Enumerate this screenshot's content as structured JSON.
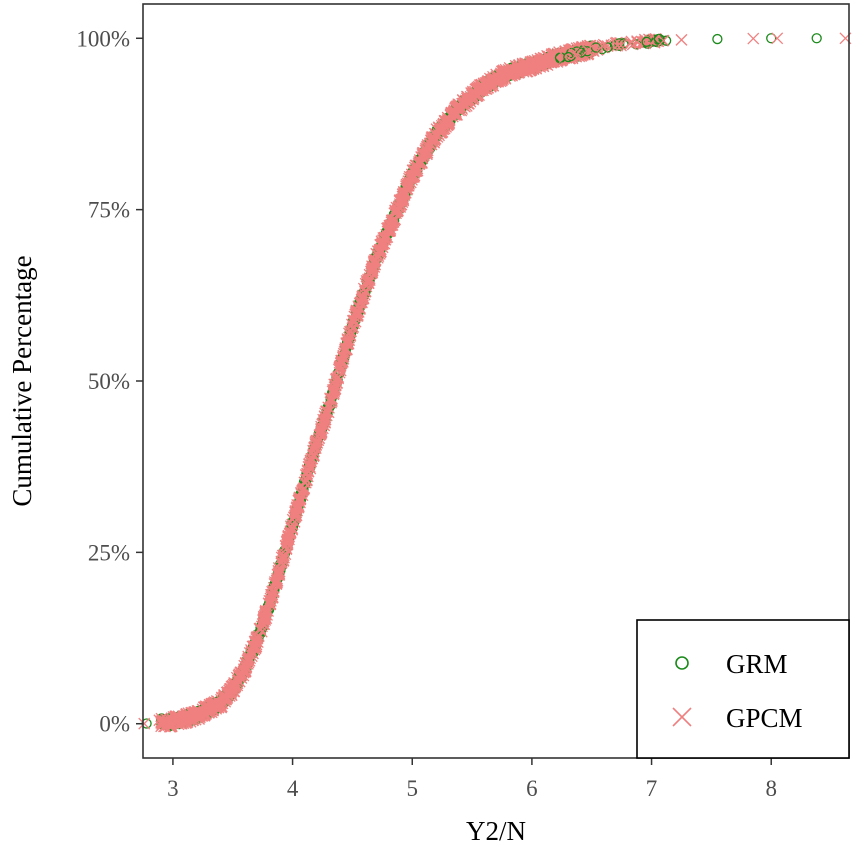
{
  "chart_data": {
    "type": "scatter",
    "title": "",
    "xlabel": "Y2/N",
    "ylabel": "Cumulative Percentage",
    "xlim": [
      2.75,
      8.65
    ],
    "ylim": [
      -0.05,
      1.05
    ],
    "xticks": [
      3,
      4,
      5,
      6,
      7,
      8
    ],
    "xtick_labels": [
      "3",
      "4",
      "5",
      "6",
      "7",
      "8"
    ],
    "yticks": [
      0,
      0.25,
      0.5,
      0.75,
      1.0
    ],
    "ytick_labels": [
      "0%",
      "25%",
      "50%",
      "75%",
      "100%"
    ],
    "grid": false,
    "legend_position": "bottom-right",
    "curve_control_points": [
      [
        2.75,
        0.0
      ],
      [
        3.0,
        0.003
      ],
      [
        3.2,
        0.012
      ],
      [
        3.4,
        0.03
      ],
      [
        3.5,
        0.05
      ],
      [
        3.6,
        0.08
      ],
      [
        3.7,
        0.12
      ],
      [
        3.8,
        0.17
      ],
      [
        3.9,
        0.23
      ],
      [
        4.0,
        0.29
      ],
      [
        4.1,
        0.35
      ],
      [
        4.2,
        0.41
      ],
      [
        4.3,
        0.46
      ],
      [
        4.4,
        0.52
      ],
      [
        4.5,
        0.58
      ],
      [
        4.6,
        0.63
      ],
      [
        4.7,
        0.68
      ],
      [
        4.8,
        0.72
      ],
      [
        4.9,
        0.76
      ],
      [
        5.0,
        0.8
      ],
      [
        5.1,
        0.83
      ],
      [
        5.2,
        0.86
      ],
      [
        5.3,
        0.88
      ],
      [
        5.4,
        0.9
      ],
      [
        5.6,
        0.93
      ],
      [
        5.8,
        0.95
      ],
      [
        6.0,
        0.96
      ],
      [
        6.2,
        0.972
      ],
      [
        6.4,
        0.98
      ],
      [
        6.6,
        0.988
      ],
      [
        6.8,
        0.993
      ],
      [
        7.0,
        0.996
      ],
      [
        7.3,
        0.998
      ],
      [
        7.6,
        0.999
      ],
      [
        8.0,
        1.0
      ],
      [
        8.65,
        1.0
      ]
    ],
    "series": [
      {
        "name": "GRM",
        "marker": "circle",
        "color": "#1b8a1b",
        "outliers_x": [
          2.78,
          7.55,
          8.0,
          8.38
        ]
      },
      {
        "name": "GPCM",
        "marker": "cross",
        "color": "#f08080",
        "outliers_x": [
          2.76,
          7.1,
          7.25,
          7.85,
          8.05,
          8.62
        ]
      }
    ]
  }
}
